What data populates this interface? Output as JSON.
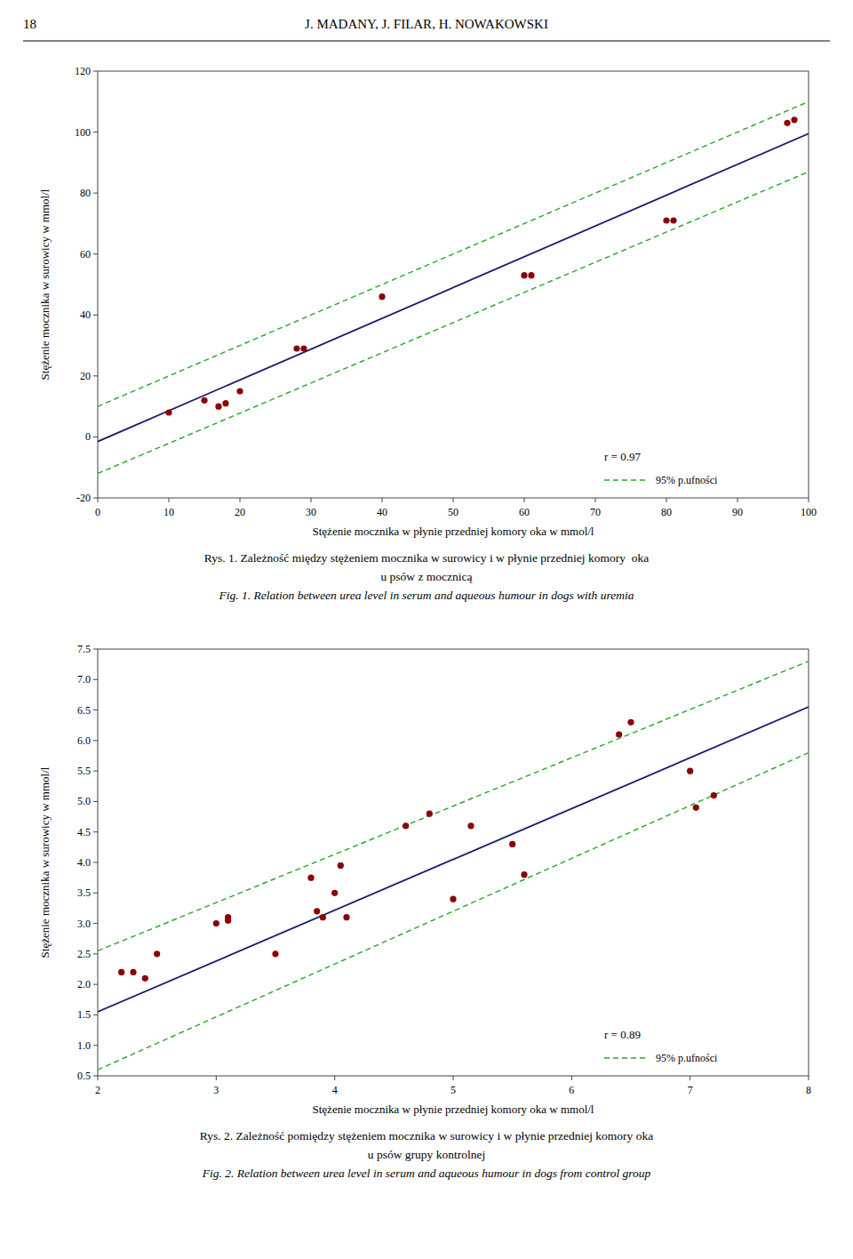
{
  "page_number": "18",
  "page_header": "J. MADANY, J. FILAR, H. NOWAKOWSKI",
  "chart_data": [
    {
      "type": "scatter",
      "xlabel": "Stężenie mocznika w płynie przedniej komory oka w mmol/l",
      "ylabel": "Stężenie mocznika w surowicy w mmol/l",
      "annotations": [
        "r = 0.97",
        "95% p.ufności"
      ],
      "caption": [
        "Rys. 1. Zależność między stężeniem mocznika w surowicy i w płynie przedniej komory  oka",
        "u psów z mocznicą",
        "Fig. 1. Relation between urea level in serum and aqueous humour in dogs with uremia"
      ],
      "xlim": [
        0,
        100
      ],
      "ylim": [
        -20,
        120
      ],
      "xticks": [
        0,
        10,
        20,
        30,
        40,
        50,
        60,
        70,
        80,
        90,
        100
      ],
      "yticks": [
        -20,
        0,
        20,
        40,
        60,
        80,
        100,
        120
      ],
      "grid": false,
      "series": [
        {
          "type": "line",
          "color": "#22AA22",
          "line_style": "dashed",
          "x": [
            0,
            100
          ],
          "values": [
            10,
            110
          ]
        },
        {
          "type": "line",
          "color": "#22AA22",
          "line_style": "dashed",
          "x": [
            0,
            100
          ],
          "values": [
            -12,
            87
          ]
        },
        {
          "type": "line",
          "color": "#1C1C6E",
          "line_style": "solid",
          "x": [
            0,
            100
          ],
          "values": [
            -1.5,
            99.5
          ]
        },
        {
          "type": "scatter",
          "color": "#8B0000",
          "marker": "circle",
          "x": [
            10,
            15,
            17,
            18,
            20,
            28,
            29,
            40,
            60,
            61,
            80,
            81,
            97,
            98
          ],
          "values": [
            8,
            12,
            10,
            11,
            15,
            29,
            29,
            46,
            53,
            53,
            71,
            71,
            103,
            104
          ]
        }
      ]
    },
    {
      "type": "scatter",
      "xlabel": "Stężenie mocznika w płynie przedniej komory oka w mmol/l",
      "ylabel": "Stężenie mocznika w surowicy w mmol/l",
      "annotations": [
        "r = 0.89",
        "95% p.ufności"
      ],
      "caption": [
        "Rys. 2. Zależność pomiędzy stężeniem mocznika w surowicy i w płynie przedniej komory oka",
        "u psów grupy kontrolnej",
        "Fig. 2. Relation between urea level in serum and aqueous humour in dogs from control group"
      ],
      "xlim": [
        2,
        8
      ],
      "ylim": [
        0.5,
        7.5
      ],
      "xticks": [
        2,
        3,
        4,
        5,
        6,
        7,
        8
      ],
      "yticks": [
        0.5,
        {
          "value": 1,
          "label": "1.0"
        },
        1.5,
        {
          "value": 2,
          "label": "2.0"
        },
        2.5,
        {
          "value": 3,
          "label": "3.0"
        },
        3.5,
        {
          "value": 4,
          "label": "4.0"
        },
        4.5,
        {
          "value": 5,
          "label": "5.0"
        },
        5.5,
        {
          "value": 6,
          "label": "6.0"
        },
        6.5,
        {
          "value": 7,
          "label": "7.0"
        },
        7.5
      ],
      "grid": false,
      "series": [
        {
          "type": "line",
          "color": "#22AA22",
          "line_style": "dashed",
          "x": [
            2,
            8
          ],
          "values": [
            2.55,
            7.3
          ]
        },
        {
          "type": "line",
          "color": "#22AA22",
          "line_style": "dashed",
          "x": [
            2,
            8
          ],
          "values": [
            0.6,
            5.8
          ]
        },
        {
          "type": "line",
          "color": "#1C1C6E",
          "line_style": "solid",
          "x": [
            2,
            8
          ],
          "values": [
            1.55,
            6.55
          ]
        },
        {
          "type": "scatter",
          "color": "#8B0000",
          "marker": "circle",
          "x": [
            2.2,
            2.3,
            2.4,
            2.5,
            3.0,
            3.1,
            3.1,
            3.5,
            3.8,
            3.85,
            3.9,
            4.0,
            4.05,
            4.1,
            4.6,
            4.8,
            5.0,
            5.15,
            5.5,
            5.6,
            6.4,
            6.5,
            7.0,
            7.05,
            7.2
          ],
          "values": [
            2.2,
            2.2,
            2.1,
            2.5,
            3.0,
            3.05,
            3.1,
            2.5,
            3.75,
            3.2,
            3.1,
            3.5,
            3.95,
            3.1,
            4.6,
            4.8,
            3.4,
            4.6,
            4.3,
            3.8,
            6.1,
            6.3,
            5.5,
            4.9,
            5.1
          ]
        }
      ]
    }
  ]
}
